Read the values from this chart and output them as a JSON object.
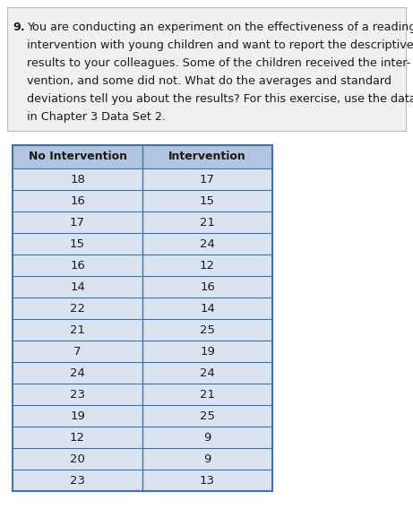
{
  "question_number": "9.",
  "question_lines": [
    "9.  You are conducting an experiment on the effectiveness of a reading",
    "    intervention with young children and want to report the descriptive",
    "    results to your colleagues. Some of the children received the inter-",
    "    vention, and some did not. What do the averages and standard",
    "    deviations tell you about the results? For this exercise, use the data",
    "    in Chapter 3 Data Set 2."
  ],
  "col1_header": "No Intervention",
  "col2_header": "Intervention",
  "col1_data": [
    18,
    16,
    17,
    15,
    16,
    14,
    22,
    21,
    7,
    24,
    23,
    19,
    12,
    20,
    23
  ],
  "col2_data": [
    17,
    15,
    21,
    24,
    12,
    16,
    14,
    25,
    19,
    24,
    21,
    25,
    9,
    9,
    13
  ],
  "header_bg": "#afc5e0",
  "row_bg": "#d9e4f0",
  "table_border_color": "#4472a8",
  "header_font_size": 9,
  "data_font_size": 9.5,
  "question_font_size": 9.2,
  "text_color": "#1a1a1a",
  "background_color": "#ffffff",
  "question_bg": "#f0f0f0",
  "question_border": "#bbbbbb"
}
